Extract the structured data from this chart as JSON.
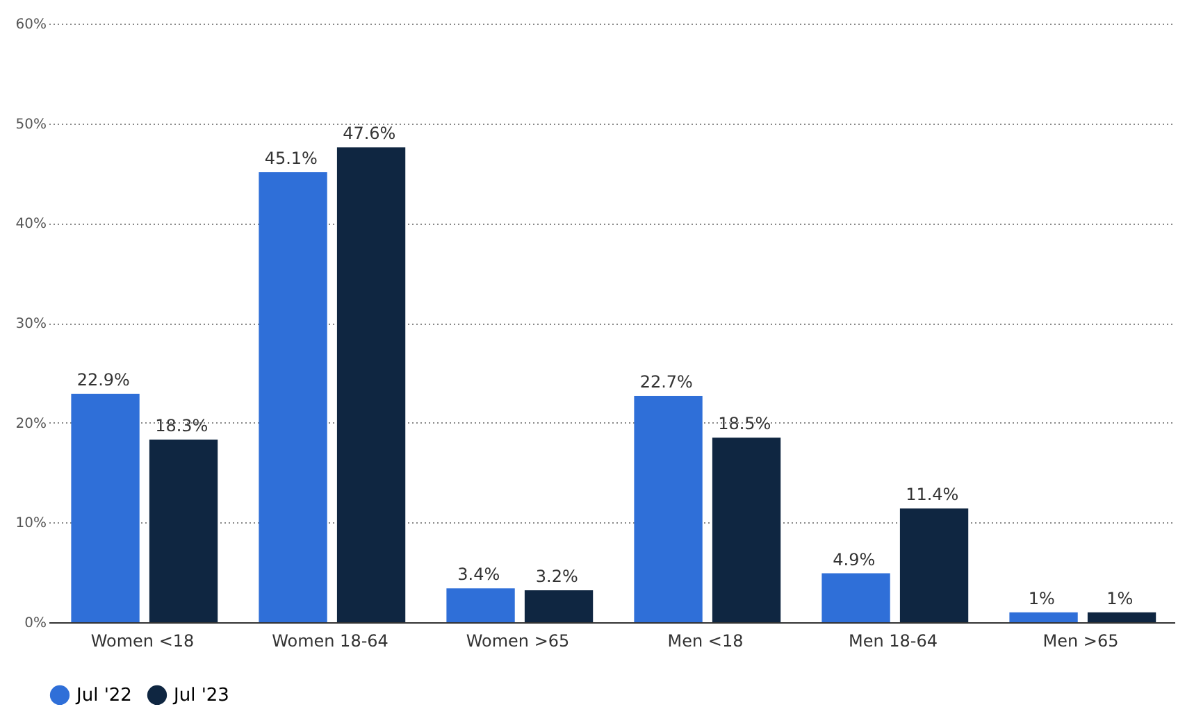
{
  "chart_data": {
    "type": "bar",
    "categories": [
      "Women <18",
      "Women 18-64",
      "Women >65",
      "Men <18",
      "Men 18-64",
      "Men >65"
    ],
    "series": [
      {
        "name": "Jul '22",
        "color": "#2f6fd8",
        "values": [
          22.9,
          45.1,
          3.4,
          22.7,
          4.9,
          1
        ],
        "value_labels": [
          "22.9%",
          "45.1%",
          "3.4%",
          "22.7%",
          "4.9%",
          "1%"
        ]
      },
      {
        "name": "Jul '23",
        "color": "#0f2641",
        "values": [
          18.3,
          47.6,
          3.2,
          18.5,
          11.4,
          1
        ],
        "value_labels": [
          "18.3%",
          "47.6%",
          "3.2%",
          "18.5%",
          "11.4%",
          "1%"
        ]
      }
    ],
    "ylim": [
      0,
      60
    ],
    "yticks": [
      {
        "value": 0,
        "label": "0%"
      },
      {
        "value": 10,
        "label": "10%"
      },
      {
        "value": 20,
        "label": "20%"
      },
      {
        "value": 30,
        "label": "30%"
      },
      {
        "value": 40,
        "label": "40%"
      },
      {
        "value": 50,
        "label": "50%"
      },
      {
        "value": 60,
        "label": "60%"
      }
    ],
    "grid": "y",
    "legend": "bottom"
  }
}
